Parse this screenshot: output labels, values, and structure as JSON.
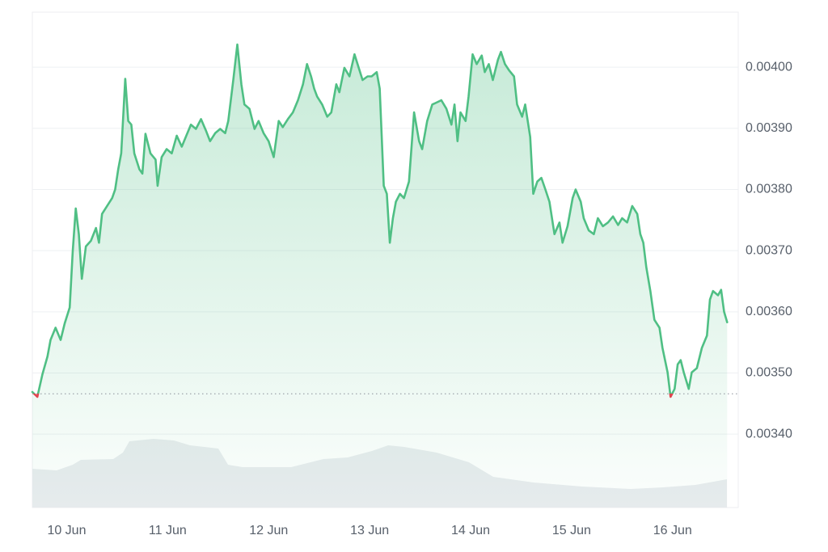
{
  "chart_data": {
    "type": "line",
    "x": [
      -0.34,
      -0.29,
      -0.24,
      -0.19,
      -0.16,
      -0.11,
      -0.06,
      -0.02,
      0.03,
      0.06,
      0.09,
      0.12,
      0.15,
      0.19,
      0.24,
      0.29,
      0.32,
      0.35,
      0.4,
      0.45,
      0.48,
      0.51,
      0.54,
      0.58,
      0.61,
      0.64,
      0.67,
      0.72,
      0.75,
      0.78,
      0.83,
      0.88,
      0.9,
      0.94,
      0.99,
      1.04,
      1.09,
      1.14,
      1.18,
      1.23,
      1.28,
      1.33,
      1.38,
      1.42,
      1.47,
      1.52,
      1.57,
      1.6,
      1.65,
      1.69,
      1.73,
      1.76,
      1.81,
      1.86,
      1.9,
      1.95,
      2,
      2.05,
      2.1,
      2.14,
      2.19,
      2.24,
      2.29,
      2.34,
      2.38,
      2.42,
      2.45,
      2.48,
      2.53,
      2.58,
      2.62,
      2.67,
      2.7,
      2.75,
      2.8,
      2.85,
      2.88,
      2.93,
      2.98,
      3.02,
      3.07,
      3.1,
      3.14,
      3.17,
      3.2,
      3.23,
      3.26,
      3.3,
      3.34,
      3.39,
      3.44,
      3.49,
      3.52,
      3.57,
      3.62,
      3.66,
      3.71,
      3.76,
      3.81,
      3.84,
      3.87,
      3.9,
      3.95,
      3.98,
      4.02,
      4.06,
      4.11,
      4.14,
      4.18,
      4.22,
      4.27,
      4.3,
      4.34,
      4.38,
      4.43,
      4.46,
      4.51,
      4.54,
      4.59,
      4.62,
      4.66,
      4.7,
      4.74,
      4.78,
      4.83,
      4.88,
      4.91,
      4.96,
      5.01,
      5.04,
      5.09,
      5.12,
      5.17,
      5.22,
      5.26,
      5.31,
      5.36,
      5.41,
      5.46,
      5.5,
      5.55,
      5.6,
      5.65,
      5.68,
      5.71,
      5.74,
      5.78,
      5.82,
      5.87,
      5.9,
      5.95,
      5.98,
      6.02,
      6.05,
      6.08,
      6.11,
      6.16,
      6.19,
      6.24,
      6.29,
      6.34,
      6.37,
      6.4,
      6.45,
      6.48,
      6.51,
      6.54
    ],
    "values": [
      0.003469,
      0.003461,
      0.003498,
      0.003527,
      0.003554,
      0.003574,
      0.003554,
      0.003581,
      0.003607,
      0.0037,
      0.003769,
      0.003727,
      0.003654,
      0.003707,
      0.003716,
      0.003737,
      0.003713,
      0.00376,
      0.003773,
      0.003786,
      0.0038,
      0.003833,
      0.003859,
      0.003981,
      0.003912,
      0.003906,
      0.003859,
      0.003833,
      0.003826,
      0.003891,
      0.003859,
      0.003849,
      0.003806,
      0.003853,
      0.003866,
      0.003859,
      0.003888,
      0.00387,
      0.003886,
      0.003906,
      0.003899,
      0.003915,
      0.003896,
      0.003879,
      0.003892,
      0.003899,
      0.003892,
      0.003912,
      0.003979,
      0.004037,
      0.003972,
      0.003939,
      0.003932,
      0.003899,
      0.003912,
      0.003892,
      0.003879,
      0.003853,
      0.003912,
      0.003902,
      0.003915,
      0.003926,
      0.003946,
      0.003972,
      0.004005,
      0.003985,
      0.003965,
      0.003952,
      0.003939,
      0.003919,
      0.003926,
      0.003972,
      0.003959,
      0.003999,
      0.003985,
      0.004021,
      0.004005,
      0.003979,
      0.003985,
      0.003985,
      0.003992,
      0.003965,
      0.003806,
      0.003793,
      0.003713,
      0.003753,
      0.00378,
      0.003793,
      0.003786,
      0.003813,
      0.003926,
      0.003879,
      0.003866,
      0.003912,
      0.003939,
      0.003942,
      0.003946,
      0.003932,
      0.003906,
      0.003939,
      0.003879,
      0.003926,
      0.003912,
      0.003952,
      0.004021,
      0.004005,
      0.004019,
      0.003992,
      0.004005,
      0.003979,
      0.004012,
      0.004025,
      0.004005,
      0.003995,
      0.003985,
      0.003939,
      0.003919,
      0.003939,
      0.003886,
      0.003793,
      0.003813,
      0.003819,
      0.0038,
      0.00378,
      0.003727,
      0.003746,
      0.003713,
      0.00374,
      0.003786,
      0.0038,
      0.00378,
      0.003753,
      0.003733,
      0.003727,
      0.003753,
      0.00374,
      0.003746,
      0.003756,
      0.003742,
      0.003753,
      0.003746,
      0.003773,
      0.00376,
      0.003727,
      0.003713,
      0.003673,
      0.003634,
      0.003587,
      0.003574,
      0.003541,
      0.003501,
      0.003461,
      0.003474,
      0.003514,
      0.003521,
      0.003501,
      0.003474,
      0.003501,
      0.003508,
      0.003541,
      0.003561,
      0.00362,
      0.003634,
      0.003627,
      0.003636,
      0.0036,
      0.003583
    ],
    "color": "#4fbf84",
    "below_color": "#e0454f",
    "reference_value": 0.003466,
    "xlim": [
      -0.34,
      6.65
    ],
    "xticks": [
      {
        "value": 0,
        "label": "10 Jun"
      },
      {
        "value": 1,
        "label": "11 Jun"
      },
      {
        "value": 2,
        "label": "12 Jun"
      },
      {
        "value": 3,
        "label": "13 Jun"
      },
      {
        "value": 4,
        "label": "14 Jun"
      },
      {
        "value": 5,
        "label": "15 Jun"
      },
      {
        "value": 6,
        "label": "16 Jun"
      }
    ],
    "ylim": [
      0.00328,
      0.00409
    ],
    "yticks": [
      {
        "value": 0.0034,
        "label": "0.00340"
      },
      {
        "value": 0.0035,
        "label": "0.00350"
      },
      {
        "value": 0.0036,
        "label": "0.00360"
      },
      {
        "value": 0.0037,
        "label": "0.00370"
      },
      {
        "value": 0.0038,
        "label": "0.00380"
      },
      {
        "value": 0.0039,
        "label": "0.00390"
      },
      {
        "value": 0.004,
        "label": "0.00400"
      }
    ],
    "grid": true
  }
}
